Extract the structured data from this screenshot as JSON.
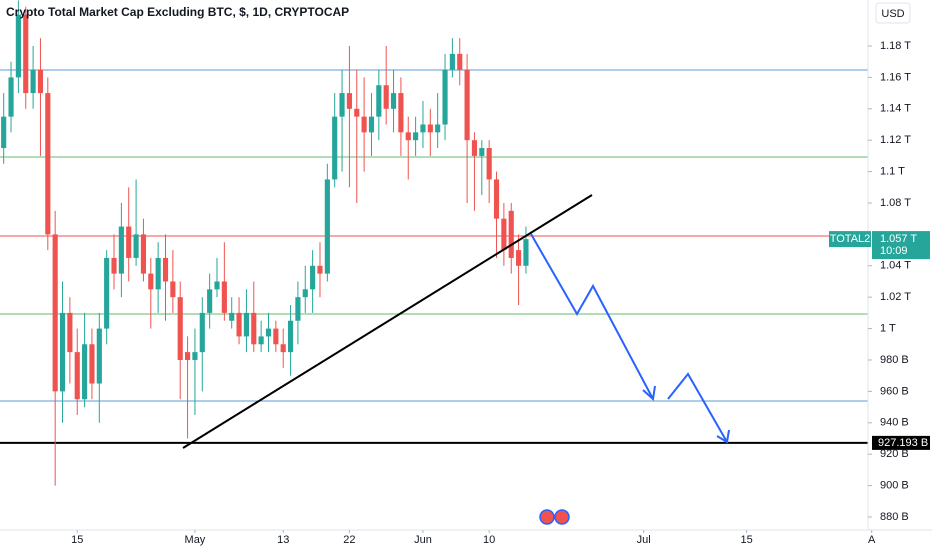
{
  "chart_data": {
    "type": "candlestick",
    "title": "Crypto Total Market Cap Excluding BTC, $, 1D, CRYPTOCAP",
    "currency": "USD",
    "symbol_tag": "TOTAL2",
    "price_tag": "1.057 T",
    "countdown": "10:09",
    "level_tag": "927.193 B",
    "up_color": "#26a69a",
    "down_color": "#ef5350",
    "xlim": [
      -0.5,
      117.5
    ],
    "xticks": [
      {
        "value": 10,
        "label": "15"
      },
      {
        "value": 26,
        "label": "May"
      },
      {
        "value": 38,
        "label": "13"
      },
      {
        "value": 47,
        "label": "22"
      },
      {
        "value": 57,
        "label": "Jun"
      },
      {
        "value": 66,
        "label": "10"
      },
      {
        "value": 87,
        "label": "Jul"
      },
      {
        "value": 101,
        "label": "15"
      },
      {
        "value": 118,
        "label": "A"
      }
    ],
    "ylim": [
      871.7,
      1209.3
    ],
    "yticks": [
      {
        "value": 1180,
        "label": "1.18 T"
      },
      {
        "value": 1160,
        "label": "1.16 T"
      },
      {
        "value": 1140,
        "label": "1.14 T"
      },
      {
        "value": 1120,
        "label": "1.12 T"
      },
      {
        "value": 1100,
        "label": "1.1 T"
      },
      {
        "value": 1080,
        "label": "1.08 T"
      },
      {
        "value": 1040,
        "label": "1.04 T"
      },
      {
        "value": 1020,
        "label": "1.02 T"
      },
      {
        "value": 1000,
        "label": "1 T"
      },
      {
        "value": 980,
        "label": "980 B"
      },
      {
        "value": 960,
        "label": "960 B"
      },
      {
        "value": 940,
        "label": "940 B"
      },
      {
        "value": 920,
        "label": "920 B"
      },
      {
        "value": 900,
        "label": "900 B"
      },
      {
        "value": 880,
        "label": "880 B"
      }
    ],
    "levels": [
      {
        "value": 1164.7,
        "color": "#5b9bd5"
      },
      {
        "value": 1109.3,
        "color": "#66bb6a"
      },
      {
        "value": 1059,
        "color": "#ef5350"
      },
      {
        "value": 1009.3,
        "color": "#66bb6a"
      },
      {
        "value": 953.9,
        "color": "#5b9bd5"
      },
      {
        "value": 927.193,
        "color": "#000000"
      }
    ],
    "open": [
      1115,
      1135,
      1160,
      1200,
      1150,
      1165,
      1150,
      1060,
      960,
      1010,
      985,
      955,
      990,
      965,
      1000,
      1045,
      1035,
      1065,
      1045,
      1060,
      1035,
      1025,
      1045,
      1030,
      1020,
      985,
      980,
      985,
      1010,
      1025,
      1030,
      1005,
      1010,
      995,
      1010,
      990,
      995,
      1000,
      990,
      985,
      1005,
      1020,
      1025,
      1040,
      1035,
      1095,
      1135,
      1150,
      1140,
      1135,
      1125,
      1135,
      1155,
      1140,
      1150,
      1125,
      1120,
      1125,
      1130,
      1125,
      1130,
      1165,
      1175,
      1165,
      1120,
      1110,
      1115,
      1095,
      1070,
      1075,
      1050,
      1040
    ],
    "high": [
      1150,
      1170,
      1209,
      1205,
      1180,
      1185,
      1160,
      1075,
      1030,
      1020,
      1000,
      1010,
      1000,
      1010,
      1050,
      1060,
      1080,
      1090,
      1095,
      1070,
      1045,
      1055,
      1060,
      1050,
      1030,
      995,
      1000,
      1020,
      1035,
      1045,
      1055,
      1020,
      1020,
      1025,
      1030,
      1005,
      1010,
      1005,
      1000,
      1015,
      1030,
      1040,
      1050,
      1055,
      1105,
      1150,
      1165,
      1180,
      1165,
      1160,
      1150,
      1165,
      1180,
      1165,
      1160,
      1135,
      1135,
      1145,
      1140,
      1150,
      1175,
      1185,
      1185,
      1175,
      1125,
      1120,
      1120,
      1100,
      1080,
      1080,
      1060,
      1065
    ],
    "low": [
      1105,
      1125,
      1150,
      1140,
      1140,
      1110,
      1050,
      900,
      940,
      965,
      945,
      950,
      955,
      940,
      990,
      1025,
      1020,
      1030,
      1040,
      1030,
      1000,
      1010,
      1005,
      1010,
      955,
      930,
      945,
      960,
      1000,
      1020,
      1005,
      1000,
      990,
      985,
      985,
      985,
      985,
      985,
      975,
      970,
      990,
      1010,
      1010,
      1020,
      1030,
      1090,
      1100,
      1090,
      1080,
      1100,
      1110,
      1120,
      1130,
      1125,
      1110,
      1095,
      1110,
      1115,
      1110,
      1115,
      1120,
      1160,
      1155,
      1080,
      1075,
      1085,
      1080,
      1045,
      1040,
      1035,
      1015,
      1035
    ],
    "close": [
      1135,
      1160,
      1200,
      1150,
      1165,
      1150,
      1060,
      960,
      1010,
      985,
      955,
      990,
      965,
      1000,
      1045,
      1035,
      1065,
      1045,
      1060,
      1035,
      1025,
      1045,
      1030,
      1020,
      980,
      980,
      985,
      1010,
      1025,
      1030,
      1010,
      1010,
      995,
      1010,
      990,
      995,
      1000,
      990,
      985,
      1005,
      1020,
      1025,
      1040,
      1035,
      1095,
      1135,
      1150,
      1140,
      1135,
      1125,
      1135,
      1155,
      1140,
      1150,
      1125,
      1120,
      1125,
      1130,
      1125,
      1130,
      1165,
      1175,
      1165,
      1120,
      1110,
      1115,
      1095,
      1070,
      1050,
      1045,
      1040,
      1057
    ]
  }
}
